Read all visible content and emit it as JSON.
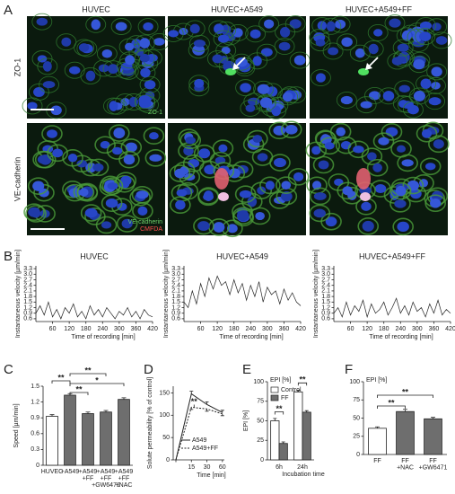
{
  "panel_labels": [
    "A",
    "B",
    "C",
    "D",
    "E",
    "F"
  ],
  "micrographs": {
    "columns": [
      "HUVEC",
      "HUVEC+A549",
      "HUVEC+A549+FF"
    ],
    "rows": [
      "ZO-1",
      "VE-cadherin"
    ],
    "stain_labels": [
      [
        "ZO-1"
      ],
      [
        "VE-cadherin",
        "CMFDA"
      ]
    ]
  },
  "chart_data": [
    {
      "type": "line",
      "title": "HUVEC",
      "ylabel": "Instantaneous velocity [µm/min]",
      "xlabel": "Time of recording [min]",
      "color": "#222222",
      "x": [
        0,
        15,
        30,
        45,
        60,
        75,
        90,
        105,
        120,
        135,
        150,
        165,
        180,
        195,
        210,
        225,
        240,
        255,
        270,
        285,
        300,
        315,
        330,
        345,
        360,
        375,
        390,
        405,
        420
      ],
      "values": [
        0.9,
        1.3,
        0.8,
        1.5,
        0.7,
        1.1,
        0.6,
        1.2,
        0.9,
        1.4,
        0.7,
        1.0,
        0.6,
        1.3,
        0.8,
        1.1,
        0.7,
        1.2,
        0.9,
        0.6,
        1.0,
        0.8,
        1.2,
        0.7,
        1.0,
        0.6,
        1.1,
        0.8,
        0.7
      ],
      "xlim": [
        0,
        420
      ],
      "xticks": [
        60,
        120,
        180,
        240,
        300,
        360,
        420
      ],
      "ylim": [
        0.45,
        3.45
      ],
      "yticks": [
        0.6,
        0.9,
        1.2,
        1.5,
        1.8,
        2.1,
        2.4,
        2.7,
        {
          "value": 3,
          "label": "3.0"
        },
        3.3
      ]
    },
    {
      "type": "line",
      "title": "HUVEC+A549",
      "ylabel": "Instantaneous velocity [µm/min]",
      "xlabel": "Time of recording [min]",
      "color": "#222222",
      "x": [
        0,
        15,
        30,
        45,
        60,
        75,
        90,
        105,
        120,
        135,
        150,
        165,
        180,
        195,
        210,
        225,
        240,
        255,
        270,
        285,
        300,
        315,
        330,
        345,
        360,
        375,
        390,
        405,
        420
      ],
      "values": [
        1.5,
        1.2,
        2.1,
        1.4,
        2.5,
        1.8,
        2.8,
        2.2,
        2.9,
        2.4,
        2.6,
        1.9,
        2.7,
        2.0,
        2.5,
        1.6,
        2.4,
        1.8,
        2.6,
        1.5,
        2.3,
        1.9,
        2.1,
        1.4,
        2.2,
        1.6,
        2.0,
        1.5,
        1.3
      ],
      "xlim": [
        0,
        420
      ],
      "xticks": [
        60,
        120,
        180,
        240,
        300,
        360,
        420
      ],
      "ylim": [
        0.45,
        3.45
      ],
      "yticks": [
        0.6,
        0.9,
        1.2,
        1.5,
        1.8,
        2.1,
        2.4,
        2.7,
        {
          "value": 3,
          "label": "3.0"
        },
        3.3
      ]
    },
    {
      "type": "line",
      "title": "HUVEC+A549+FF",
      "ylabel": "Instantaneous velocity [µm/min]",
      "xlabel": "Time of recording [min]",
      "color": "#222222",
      "x": [
        0,
        15,
        30,
        45,
        60,
        75,
        90,
        105,
        120,
        135,
        150,
        165,
        180,
        195,
        210,
        225,
        240,
        255,
        270,
        285,
        300,
        315,
        330,
        345,
        360,
        375,
        390,
        405,
        420
      ],
      "values": [
        0.9,
        1.2,
        0.7,
        1.5,
        0.8,
        1.3,
        1.0,
        1.6,
        0.7,
        1.4,
        0.9,
        1.1,
        1.5,
        0.8,
        1.2,
        1.7,
        0.9,
        1.3,
        0.8,
        1.5,
        1.0,
        1.2,
        0.7,
        1.4,
        0.9,
        1.6,
        0.8,
        1.1,
        0.9
      ],
      "xlim": [
        0,
        420
      ],
      "xticks": [
        60,
        120,
        180,
        240,
        300,
        360,
        420
      ],
      "ylim": [
        0.45,
        3.45
      ],
      "yticks": [
        0.6,
        0.9,
        1.2,
        1.5,
        1.8,
        2.1,
        2.4,
        2.7,
        {
          "value": 3,
          "label": "3.0"
        },
        3.3
      ]
    },
    {
      "type": "bar",
      "ylabel": "Speed [µm/min]",
      "categories": [
        [
          "HUVEC"
        ],
        [
          "+A549"
        ],
        [
          "+A549",
          "+FF"
        ],
        [
          "+A549",
          "+FF",
          "+GW6471"
        ],
        [
          "+A549",
          "+FF",
          "+NAC"
        ]
      ],
      "values": [
        0.93,
        1.33,
        0.98,
        1.01,
        1.25
      ],
      "errors": [
        0.03,
        0.03,
        0.03,
        0.03,
        0.03
      ],
      "colors": [
        "#ffffff",
        "#6e6e6e",
        "#6e6e6e",
        "#6e6e6e",
        "#6e6e6e"
      ],
      "ylim": [
        0,
        1.5
      ],
      "yticks": [
        0,
        0.3,
        0.6,
        0.9,
        1.2,
        1.5
      ],
      "annotations": [
        "**",
        "**",
        "**",
        "*"
      ]
    },
    {
      "type": "line",
      "ylabel": "Solute permeability [% of control]",
      "xlabel": "Time [min]",
      "categories": [
        null,
        "15",
        "30",
        "60"
      ],
      "series": [
        {
          "name": "A549",
          "style": "solid",
          "color": "#222222",
          "values": [
            0,
            148,
            124,
            106
          ],
          "errors": [
            0,
            6,
            6,
            5
          ]
        },
        {
          "name": "A549+FF",
          "style": "dashed",
          "color": "#222222",
          "values": [
            0,
            118,
            114,
            103
          ],
          "errors": [
            0,
            5,
            5,
            4
          ]
        }
      ],
      "ylim": [
        0,
        165
      ],
      "yticks": [
        0,
        50,
        100,
        150
      ],
      "annotations": [
        "**"
      ]
    },
    {
      "type": "grouped_bar",
      "ylabel": "EPI [%]",
      "xlabel": "Incubation time",
      "categories": [
        "6h",
        "24h"
      ],
      "series": [
        {
          "name": "Control",
          "color": "#ffffff",
          "values": [
            50,
            87
          ],
          "errors": [
            3,
            2
          ]
        },
        {
          "name": "FF",
          "color": "#6e6e6e",
          "values": [
            21,
            61
          ],
          "errors": [
            2,
            2
          ]
        }
      ],
      "ylim": [
        0,
        100
      ],
      "yticks": [
        0,
        25,
        50,
        75,
        100
      ],
      "annotations": [
        "**",
        "**"
      ]
    },
    {
      "type": "bar",
      "ylabel": "EPI [%]",
      "categories": [
        [
          "FF"
        ],
        [
          "FF",
          "+NAC"
        ],
        [
          "FF",
          "+GW6471"
        ]
      ],
      "values": [
        36,
        59,
        49
      ],
      "errors": [
        2,
        3,
        2
      ],
      "colors": [
        "#ffffff",
        "#6e6e6e",
        "#6e6e6e"
      ],
      "ylim": [
        0,
        100
      ],
      "yticks": [
        0,
        25,
        50,
        75,
        100
      ],
      "annotations": [
        "**",
        "**"
      ]
    }
  ]
}
